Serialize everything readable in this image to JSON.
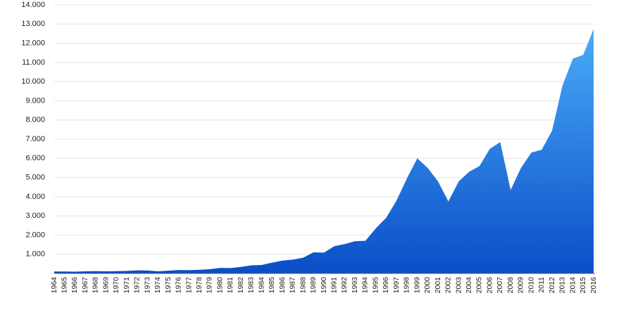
{
  "chart_data": {
    "type": "area",
    "categories": [
      "1964",
      "1965",
      "1966",
      "1967",
      "1968",
      "1969",
      "1970",
      "1971",
      "1972",
      "1973",
      "1974",
      "1975",
      "1976",
      "1977",
      "1978",
      "1979",
      "1980",
      "1981",
      "1982",
      "1983",
      "1984",
      "1985",
      "1986",
      "1987",
      "1988",
      "1989",
      "1990",
      "1991",
      "1992",
      "1993",
      "1994",
      "1995",
      "1996",
      "1997",
      "1998",
      "1999",
      "2000",
      "2001",
      "2002",
      "2003",
      "2004",
      "2005",
      "2006",
      "2007",
      "2008",
      "2009",
      "2010",
      "2011",
      "2012",
      "2013",
      "2014",
      "2015",
      "2016"
    ],
    "values": [
      100,
      100,
      90,
      110,
      120,
      110,
      120,
      130,
      160,
      150,
      110,
      140,
      180,
      170,
      190,
      220,
      290,
      280,
      340,
      420,
      440,
      560,
      670,
      720,
      820,
      1100,
      1080,
      1420,
      1530,
      1680,
      1700,
      2350,
      2900,
      3800,
      4950,
      6000,
      5500,
      4800,
      3750,
      4800,
      5300,
      5600,
      6500,
      6850,
      4350,
      5500,
      6300,
      6450,
      7450,
      9800,
      11200,
      11400,
      12750
    ],
    "gradient": [
      "#4aacf7",
      "#0a4ec8"
    ],
    "ylim": [
      0,
      14000
    ],
    "yticks": [
      {
        "value": 1000,
        "label": "1.000"
      },
      {
        "value": 2000,
        "label": "2.000"
      },
      {
        "value": 3000,
        "label": "3.000"
      },
      {
        "value": 4000,
        "label": "4.000"
      },
      {
        "value": 5000,
        "label": "5.000"
      },
      {
        "value": 6000,
        "label": "6.000"
      },
      {
        "value": 7000,
        "label": "7.000"
      },
      {
        "value": 8000,
        "label": "8.000"
      },
      {
        "value": 9000,
        "label": "9.000"
      },
      {
        "value": 10000,
        "label": "10.000"
      },
      {
        "value": 11000,
        "label": "11.000"
      },
      {
        "value": 12000,
        "label": "12.000"
      },
      {
        "value": 13000,
        "label": "13.000"
      },
      {
        "value": 14000,
        "label": "14.000"
      }
    ],
    "grid": true
  }
}
